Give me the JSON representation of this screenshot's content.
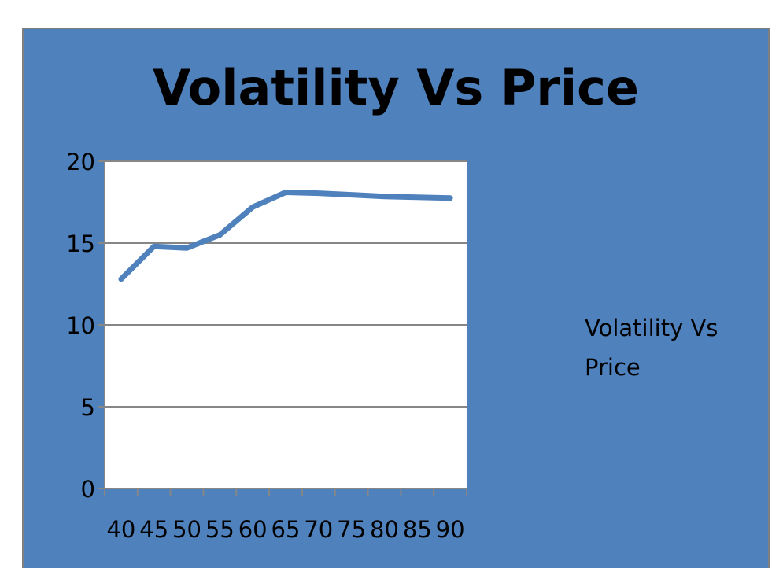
{
  "chart_data": {
    "type": "line",
    "title": "Volatility Vs Price",
    "x": [
      40,
      45,
      50,
      55,
      60,
      65,
      70,
      75,
      80,
      85,
      90
    ],
    "series": [
      {
        "name": "Volatility Vs Price",
        "values": [
          12.8,
          14.8,
          14.7,
          15.5,
          17.2,
          18.1,
          18.05,
          17.95,
          17.85,
          17.8,
          17.75
        ]
      }
    ],
    "ylim": [
      0,
      20
    ],
    "yticks": [
      0,
      5,
      10,
      15,
      20
    ],
    "grid": true,
    "legend": "right",
    "colors": {
      "background": "#4f81bd",
      "plot_area": "#ffffff",
      "line": "#4f81bd",
      "gridline": "#868686"
    }
  }
}
